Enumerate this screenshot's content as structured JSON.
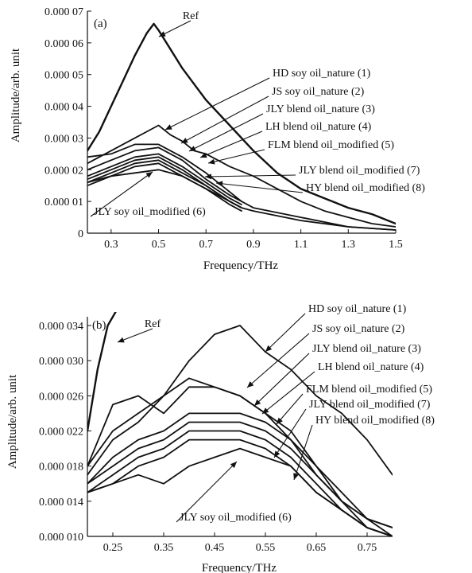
{
  "chart_data": [
    {
      "type": "line",
      "panel_label": "(a)",
      "xlabel": "Frequency/THz",
      "ylabel": "Amplitude/arb. unit",
      "xlim": [
        0.2,
        1.5
      ],
      "ylim": [
        0,
        7e-05
      ],
      "xticks": [
        {
          "v": 0.3,
          "t": "0.3"
        },
        {
          "v": 0.5,
          "t": "0.5"
        },
        {
          "v": 0.7,
          "t": "0.7"
        },
        {
          "v": 0.9,
          "t": "0.9"
        },
        {
          "v": 1.1,
          "t": "1.1"
        },
        {
          "v": 1.3,
          "t": "1.3"
        },
        {
          "v": 1.5,
          "t": "1.5"
        }
      ],
      "yticks": [
        {
          "v": 0,
          "t": "0"
        },
        {
          "v": 1e-05,
          "t": "0.000 01"
        },
        {
          "v": 2e-05,
          "t": "0.000 02"
        },
        {
          "v": 3e-05,
          "t": "0.000 03"
        },
        {
          "v": 4e-05,
          "t": "0.000 04"
        },
        {
          "v": 5e-05,
          "t": "0.000 05"
        },
        {
          "v": 6e-05,
          "t": "0.000 06"
        },
        {
          "v": 7e-05,
          "t": "0.000 07"
        }
      ],
      "series": [
        {
          "name": "Ref",
          "x": [
            0.2,
            0.25,
            0.3,
            0.35,
            0.4,
            0.45,
            0.48,
            0.5,
            0.55,
            0.6,
            0.65,
            0.7,
            0.8,
            0.9,
            1.0,
            1.1,
            1.2,
            1.3,
            1.4,
            1.5
          ],
          "y": [
            2.6e-05,
            3.2e-05,
            4e-05,
            4.8e-05,
            5.6e-05,
            6.3e-05,
            6.6e-05,
            6.4e-05,
            5.8e-05,
            5.2e-05,
            4.7e-05,
            4.2e-05,
            3.4e-05,
            2.6e-05,
            1.9e-05,
            1.4e-05,
            1.1e-05,
            8e-06,
            6e-06,
            3e-06
          ]
        },
        {
          "name": "HD soy oil_nature (1)",
          "x": [
            0.2,
            0.3,
            0.4,
            0.45,
            0.5,
            0.55,
            0.6,
            0.65,
            0.7,
            0.75,
            0.8,
            0.9,
            1.0,
            1.1,
            1.2,
            1.3,
            1.4,
            1.5
          ],
          "y": [
            2.2e-05,
            2.6e-05,
            3e-05,
            3.2e-05,
            3.4e-05,
            3.1e-05,
            2.9e-05,
            2.6e-05,
            2.5e-05,
            2.3e-05,
            2.1e-05,
            1.8e-05,
            1.4e-05,
            1e-05,
            7e-06,
            5e-06,
            3e-06,
            2e-06
          ]
        },
        {
          "name": "JS soy oil_nature (2)",
          "x": [
            0.2,
            0.3,
            0.4,
            0.5,
            0.6,
            0.7,
            0.8,
            0.85
          ],
          "y": [
            2.4e-05,
            2.5e-05,
            2.8e-05,
            2.8e-05,
            2.4e-05,
            1.9e-05,
            1.3e-05,
            1e-05
          ]
        },
        {
          "name": "JLY blend oil_nature (3)",
          "x": [
            0.2,
            0.3,
            0.4,
            0.5,
            0.6,
            0.7,
            0.8,
            0.85,
            0.9,
            1.1,
            1.3,
            1.5
          ],
          "y": [
            2e-05,
            2.3e-05,
            2.6e-05,
            2.7e-05,
            2.3e-05,
            1.7e-05,
            1.2e-05,
            1e-05,
            8e-06,
            5e-06,
            2e-06,
            1e-06
          ]
        },
        {
          "name": "LH blend oil_nature (4)",
          "x": [
            0.2,
            0.3,
            0.4,
            0.5,
            0.6,
            0.7,
            0.8,
            0.85
          ],
          "y": [
            1.8e-05,
            2.1e-05,
            2.4e-05,
            2.5e-05,
            2.1e-05,
            1.6e-05,
            1.1e-05,
            9e-06
          ]
        },
        {
          "name": "FLM blend oil_modified (5)",
          "x": [
            0.2,
            0.3,
            0.4,
            0.5,
            0.6,
            0.7,
            0.8,
            0.85
          ],
          "y": [
            1.7e-05,
            2e-05,
            2.3e-05,
            2.4e-05,
            2e-05,
            1.5e-05,
            1e-05,
            8e-06
          ]
        },
        {
          "name": "JLY blend oil_modified (7)",
          "x": [
            0.2,
            0.3,
            0.4,
            0.5,
            0.6,
            0.7,
            0.8,
            0.85
          ],
          "y": [
            1.6e-05,
            1.9e-05,
            2.2e-05,
            2.3e-05,
            1.9e-05,
            1.5e-05,
            1e-05,
            8e-06
          ]
        },
        {
          "name": "HY blend oil_modified (8)",
          "x": [
            0.2,
            0.3,
            0.4,
            0.5,
            0.6,
            0.7,
            0.8,
            0.85
          ],
          "y": [
            1.5e-05,
            1.8e-05,
            2.1e-05,
            2.2e-05,
            1.8e-05,
            1.4e-05,
            9e-06,
            7e-06
          ]
        },
        {
          "name": "JLY soy oil_modified (6)",
          "x": [
            0.2,
            0.3,
            0.4,
            0.5,
            0.6,
            0.7,
            0.8,
            0.85,
            0.9,
            1.1,
            1.3,
            1.5
          ],
          "y": [
            1.6e-05,
            1.8e-05,
            1.9e-05,
            2e-05,
            1.8e-05,
            1.4e-05,
            1e-05,
            8e-06,
            7e-06,
            4e-06,
            2e-06,
            1e-06
          ]
        }
      ]
    },
    {
      "type": "line",
      "panel_label": "(b)",
      "xlabel": "Frequency/THz",
      "ylabel": "Amplitude/arb. unit",
      "xlim": [
        0.2,
        0.8
      ],
      "ylim": [
        1e-05,
        3.5e-05
      ],
      "xticks": [
        {
          "v": 0.25,
          "t": "0.25"
        },
        {
          "v": 0.35,
          "t": "0.35"
        },
        {
          "v": 0.45,
          "t": "0.45"
        },
        {
          "v": 0.55,
          "t": "0.55"
        },
        {
          "v": 0.65,
          "t": "0.65"
        },
        {
          "v": 0.75,
          "t": "0.75"
        }
      ],
      "yticks": [
        {
          "v": 1e-05,
          "t": "0.000 010"
        },
        {
          "v": 1.4e-05,
          "t": "0.000 014"
        },
        {
          "v": 1.8e-05,
          "t": "0.000 018"
        },
        {
          "v": 2.2e-05,
          "t": "0.000 022"
        },
        {
          "v": 2.6e-05,
          "t": "0.000 026"
        },
        {
          "v": 3e-05,
          "t": "0.000 030"
        },
        {
          "v": 3.4e-05,
          "t": "0.000 034"
        }
      ],
      "series": [
        {
          "name": "Ref",
          "x": [
            0.2,
            0.22,
            0.24,
            0.26
          ],
          "y": [
            2.2e-05,
            2.9e-05,
            3.4e-05,
            3.6e-05
          ]
        },
        {
          "name": "HD soy oil_nature (1)",
          "x": [
            0.2,
            0.25,
            0.3,
            0.35,
            0.4,
            0.45,
            0.5,
            0.55,
            0.6,
            0.65,
            0.7,
            0.75,
            0.8
          ],
          "y": [
            1.8e-05,
            2.2e-05,
            2.4e-05,
            2.6e-05,
            3e-05,
            3.3e-05,
            3.4e-05,
            3.1e-05,
            2.9e-05,
            2.6e-05,
            2.4e-05,
            2.1e-05,
            1.7e-05
          ]
        },
        {
          "name": "JS soy oil_nature (2)",
          "x": [
            0.2,
            0.25,
            0.3,
            0.35,
            0.4,
            0.45,
            0.5,
            0.55,
            0.6,
            0.65,
            0.7,
            0.75,
            0.8
          ],
          "y": [
            1.8e-05,
            2.5e-05,
            2.6e-05,
            2.4e-05,
            2.7e-05,
            2.7e-05,
            2.6e-05,
            2.4e-05,
            2.2e-05,
            1.8e-05,
            1.5e-05,
            1.2e-05,
            1.1e-05
          ]
        },
        {
          "name": "JLY blend oil_nature (3)",
          "x": [
            0.2,
            0.25,
            0.3,
            0.35,
            0.4,
            0.45,
            0.5,
            0.55,
            0.6,
            0.65,
            0.7,
            0.75,
            0.8
          ],
          "y": [
            1.7e-05,
            2.1e-05,
            2.3e-05,
            2.6e-05,
            2.8e-05,
            2.7e-05,
            2.6e-05,
            2.4e-05,
            2.1e-05,
            1.7e-05,
            1.4e-05,
            1.1e-05,
            1e-05
          ]
        },
        {
          "name": "LH blend oil_nature (4)",
          "x": [
            0.2,
            0.25,
            0.3,
            0.35,
            0.4,
            0.45,
            0.5,
            0.55,
            0.6,
            0.65,
            0.7,
            0.75,
            0.8
          ],
          "y": [
            1.6e-05,
            1.9e-05,
            2.1e-05,
            2.2e-05,
            2.4e-05,
            2.4e-05,
            2.4e-05,
            2.3e-05,
            2.1e-05,
            1.8e-05,
            1.4e-05,
            1.2e-05,
            1.1e-05
          ]
        },
        {
          "name": "FLM blend oil_modified (5)",
          "x": [
            0.2,
            0.25,
            0.3,
            0.35,
            0.4,
            0.45,
            0.5,
            0.55,
            0.6,
            0.65,
            0.7,
            0.75,
            0.8
          ],
          "y": [
            1.6e-05,
            1.8e-05,
            2e-05,
            2.1e-05,
            2.3e-05,
            2.3e-05,
            2.3e-05,
            2.2e-05,
            2e-05,
            1.7e-05,
            1.4e-05,
            1.2e-05,
            1e-05
          ]
        },
        {
          "name": "JLY blend oil_modified (7)",
          "x": [
            0.2,
            0.25,
            0.3,
            0.35,
            0.4,
            0.45,
            0.5,
            0.55,
            0.6,
            0.65,
            0.7,
            0.75,
            0.8
          ],
          "y": [
            1.5e-05,
            1.7e-05,
            1.9e-05,
            2e-05,
            2.2e-05,
            2.2e-05,
            2.2e-05,
            2.1e-05,
            1.9e-05,
            1.6e-05,
            1.3e-05,
            1.1e-05,
            1e-05
          ]
        },
        {
          "name": "HY blend oil_modified (8)",
          "x": [
            0.2,
            0.25,
            0.3,
            0.35,
            0.4,
            0.45,
            0.5,
            0.55,
            0.6,
            0.65,
            0.7,
            0.75,
            0.8
          ],
          "y": [
            1.5e-05,
            1.6e-05,
            1.8e-05,
            1.9e-05,
            2.1e-05,
            2.1e-05,
            2.1e-05,
            2e-05,
            1.8e-05,
            1.5e-05,
            1.3e-05,
            1.1e-05,
            1e-05
          ]
        },
        {
          "name": "JLY soy oil_modified (6)",
          "x": [
            0.2,
            0.25,
            0.3,
            0.35,
            0.4,
            0.45,
            0.5,
            0.55,
            0.6,
            0.65,
            0.7,
            0.75,
            0.8
          ],
          "y": [
            1.5e-05,
            1.6e-05,
            1.7e-05,
            1.6e-05,
            1.8e-05,
            1.9e-05,
            2e-05,
            1.9e-05,
            1.8e-05,
            1.5e-05,
            1.3e-05,
            1.1e-05,
            1e-05
          ]
        }
      ]
    }
  ]
}
